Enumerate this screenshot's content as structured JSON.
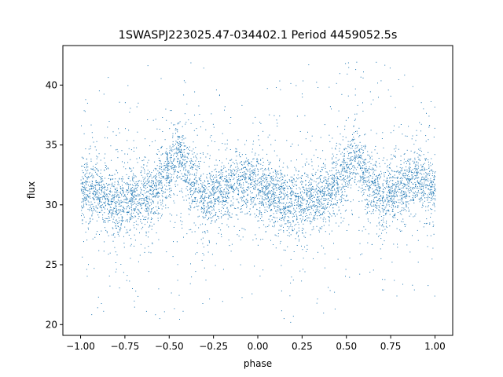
{
  "chart_data": {
    "type": "scatter",
    "title": "1SWASPJ223025.47-034402.1 Period 4459052.5s",
    "xlabel": "phase",
    "ylabel": "flux",
    "xlim": [
      -1.1,
      1.1
    ],
    "ylim": [
      19.1,
      43.3
    ],
    "grid": false,
    "point_color": "#1f77b4",
    "x_ticks": [
      {
        "value": -1.0,
        "label": "−1.00"
      },
      {
        "value": -0.75,
        "label": "−0.75"
      },
      {
        "value": -0.5,
        "label": "−0.50"
      },
      {
        "value": -0.25,
        "label": "−0.25"
      },
      {
        "value": 0.0,
        "label": "0.00"
      },
      {
        "value": 0.25,
        "label": "0.25"
      },
      {
        "value": 0.5,
        "label": "0.50"
      },
      {
        "value": 0.75,
        "label": "0.75"
      },
      {
        "value": 1.0,
        "label": "1.00"
      }
    ],
    "y_ticks": [
      {
        "value": 20,
        "label": "20"
      },
      {
        "value": 25,
        "label": "25"
      },
      {
        "value": 30,
        "label": "30"
      },
      {
        "value": 35,
        "label": "35"
      },
      {
        "value": 40,
        "label": "40"
      }
    ],
    "series_profile": {
      "phase": [
        -1.0,
        -0.9,
        -0.8,
        -0.7,
        -0.6,
        -0.5,
        -0.45,
        -0.4,
        -0.3,
        -0.2,
        -0.1,
        0.0,
        0.1,
        0.2,
        0.3,
        0.4,
        0.5,
        0.55,
        0.6,
        0.7,
        0.8,
        0.9,
        1.0
      ],
      "median_flux": [
        31.5,
        31.0,
        30.0,
        30.5,
        31.0,
        33.0,
        34.5,
        32.5,
        30.5,
        31.5,
        32.0,
        31.5,
        31.0,
        30.0,
        30.5,
        31.0,
        33.0,
        34.5,
        32.5,
        30.5,
        31.5,
        32.0,
        31.5
      ]
    }
  }
}
